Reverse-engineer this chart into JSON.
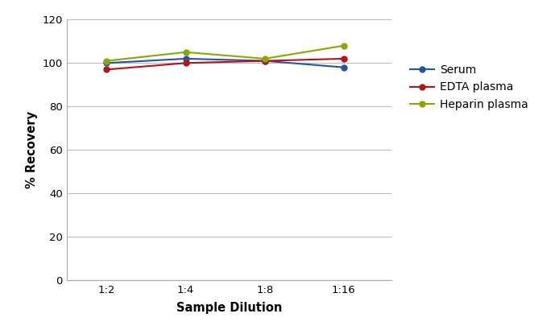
{
  "x_labels": [
    "1:2",
    "1:4",
    "1:8",
    "1:16"
  ],
  "x_values": [
    1,
    2,
    3,
    4
  ],
  "serum": [
    100,
    102,
    101,
    98
  ],
  "edta_plasma": [
    97,
    100,
    101,
    102
  ],
  "heparin_plasma": [
    101,
    105,
    102,
    108
  ],
  "serum_color": "#2255aa",
  "edta_color": "#bb1111",
  "heparin_color": "#88aa00",
  "ylabel": "% Recovery",
  "xlabel": "Sample Dilution",
  "ylim": [
    0,
    120
  ],
  "yticks": [
    0,
    20,
    40,
    60,
    80,
    100,
    120
  ],
  "legend_labels": [
    "Serum",
    "EDTA plasma",
    "Heparin plasma"
  ],
  "background_color": "#ffffff",
  "grid_color": "#bbbbbb",
  "marker": "o",
  "linewidth": 1.5,
  "markersize": 5
}
